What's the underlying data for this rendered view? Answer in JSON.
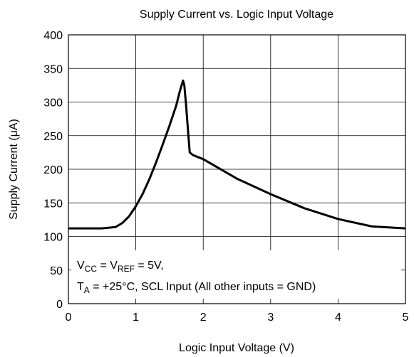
{
  "chart_data": {
    "type": "line",
    "title": "Supply Current vs. Logic Input Voltage",
    "x_label": "Logic Input Voltage (V)",
    "y_label": "Supply Current (μA)",
    "annotation": [
      [
        "V",
        "CC",
        " = V",
        "REF",
        " = 5V,"
      ],
      [
        "T",
        "A",
        " = +25°C, SCL Input (All other inputs = GND)"
      ]
    ],
    "series": [
      {
        "color": "#000000",
        "x": [
          0,
          0.5,
          0.7,
          0.8,
          0.9,
          1.0,
          1.1,
          1.2,
          1.3,
          1.4,
          1.5,
          1.6,
          1.65,
          1.7,
          1.72,
          1.75,
          1.78,
          1.8,
          1.85,
          1.9,
          2.0,
          2.5,
          3.0,
          3.5,
          4.0,
          4.5,
          5.0
        ],
        "values": [
          112,
          112,
          114,
          120,
          130,
          145,
          163,
          185,
          210,
          237,
          265,
          295,
          315,
          332,
          325,
          290,
          250,
          225,
          221,
          219,
          215,
          186,
          163,
          142,
          126,
          115,
          112
        ]
      }
    ],
    "xlim": [
      0,
      5
    ],
    "xticks": [
      0,
      1,
      2,
      3,
      4,
      5
    ],
    "ylim": [
      0,
      400
    ],
    "yticks": [
      0,
      50,
      100,
      150,
      200,
      250,
      300,
      350,
      400
    ],
    "grid": true
  }
}
